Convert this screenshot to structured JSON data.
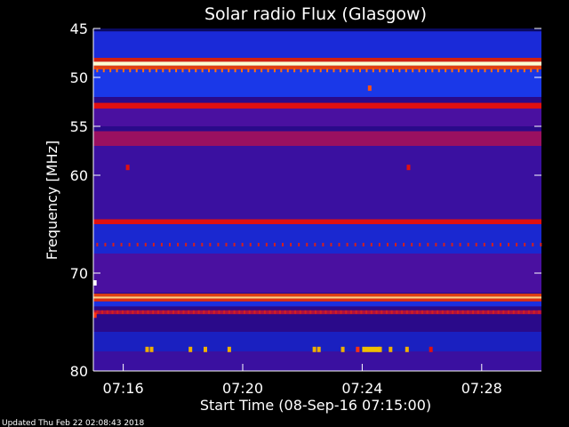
{
  "chart_data": {
    "type": "heatmap",
    "title": "Solar radio Flux (Glasgow)",
    "xlabel": "Start Time (08-Sep-16 07:15:00)",
    "ylabel": "Frequency [MHz]",
    "ylim": [
      45,
      80
    ],
    "y_axis_inverted": true,
    "y_ticks": [
      45,
      50,
      55,
      60,
      70,
      80
    ],
    "x_range_minutes_after_start": [
      0,
      15
    ],
    "x_ticks": [
      {
        "minute": 1,
        "label": "07:16"
      },
      {
        "minute": 5,
        "label": "07:20"
      },
      {
        "minute": 9,
        "label": "07:24"
      },
      {
        "minute": 13,
        "label": "07:28"
      }
    ],
    "background_color": "#2a0a8a",
    "bands": [
      {
        "from_mhz": 45.0,
        "to_mhz": 45.3,
        "intensity": "low",
        "color": "#0a0a60"
      },
      {
        "from_mhz": 45.3,
        "to_mhz": 48.0,
        "intensity": "low",
        "color": "#1a2ad8"
      },
      {
        "from_mhz": 48.0,
        "to_mhz": 48.4,
        "intensity": "medium",
        "color": "#d02010"
      },
      {
        "from_mhz": 48.4,
        "to_mhz": 48.8,
        "intensity": "high",
        "color": "#ffffd0"
      },
      {
        "from_mhz": 48.8,
        "to_mhz": 49.2,
        "intensity": "medium",
        "color": "#e04010"
      },
      {
        "from_mhz": 49.2,
        "to_mhz": 52.0,
        "intensity": "low",
        "color": "#1a38e8"
      },
      {
        "from_mhz": 52.6,
        "to_mhz": 53.2,
        "intensity": "medium",
        "color": "#e01010"
      },
      {
        "from_mhz": 53.2,
        "to_mhz": 55.0,
        "intensity": "low",
        "color": "#4a10a0"
      },
      {
        "from_mhz": 55.5,
        "to_mhz": 57.0,
        "intensity": "medium",
        "color": "#9a1060"
      },
      {
        "from_mhz": 57.0,
        "to_mhz": 64.5,
        "intensity": "low",
        "color": "#3a10a0"
      },
      {
        "from_mhz": 64.5,
        "to_mhz": 65.0,
        "intensity": "medium",
        "color": "#e01010"
      },
      {
        "from_mhz": 65.0,
        "to_mhz": 68.0,
        "intensity": "low",
        "color": "#1a28d0"
      },
      {
        "from_mhz": 68.0,
        "to_mhz": 72.0,
        "intensity": "low",
        "color": "#4a10a0"
      },
      {
        "from_mhz": 72.1,
        "to_mhz": 72.4,
        "intensity": "medium",
        "color": "#e04010"
      },
      {
        "from_mhz": 72.4,
        "to_mhz": 72.6,
        "intensity": "high",
        "color": "#ffd080"
      },
      {
        "from_mhz": 72.6,
        "to_mhz": 72.9,
        "intensity": "medium",
        "color": "#e03010"
      },
      {
        "from_mhz": 72.9,
        "to_mhz": 73.4,
        "intensity": "low",
        "color": "#1a30e0"
      },
      {
        "from_mhz": 73.8,
        "to_mhz": 74.2,
        "intensity": "medium",
        "color": "#b01040"
      },
      {
        "from_mhz": 76.0,
        "to_mhz": 78.0,
        "intensity": "low",
        "color": "#1a20c0"
      },
      {
        "from_mhz": 78.0,
        "to_mhz": 80.0,
        "intensity": "low",
        "color": "#3a10a0"
      }
    ],
    "bursts": [
      {
        "minute": 1.15,
        "mhz": 59.2,
        "color": "#e01010"
      },
      {
        "minute": 10.55,
        "mhz": 59.2,
        "color": "#e01010"
      },
      {
        "minute": 9.25,
        "mhz": 51.1,
        "color": "#ff5010"
      },
      {
        "minute": 1.8,
        "mhz": 77.8,
        "color": "#f0b000"
      },
      {
        "minute": 1.95,
        "mhz": 77.8,
        "color": "#f0b000"
      },
      {
        "minute": 3.25,
        "mhz": 77.8,
        "color": "#f0b000"
      },
      {
        "minute": 3.75,
        "mhz": 77.8,
        "color": "#f0b000"
      },
      {
        "minute": 4.55,
        "mhz": 77.8,
        "color": "#f0b000"
      },
      {
        "minute": 7.4,
        "mhz": 77.8,
        "color": "#f0b000"
      },
      {
        "minute": 7.55,
        "mhz": 77.8,
        "color": "#f0b000"
      },
      {
        "minute": 8.35,
        "mhz": 77.8,
        "color": "#f0b000"
      },
      {
        "minute": 8.85,
        "mhz": 77.8,
        "color": "#ff3010"
      },
      {
        "minute": 9.6,
        "mhz": 77.8,
        "color": "#f0b000"
      },
      {
        "minute": 9.95,
        "mhz": 77.8,
        "color": "#f0b000"
      },
      {
        "minute": 10.5,
        "mhz": 77.8,
        "color": "#f0b000"
      },
      {
        "minute": 11.3,
        "mhz": 77.8,
        "color": "#e01010"
      },
      {
        "minute": 0.05,
        "mhz": 71.0,
        "color": "#ffffff"
      },
      {
        "minute": 0.05,
        "mhz": 74.3,
        "color": "#ff3010"
      }
    ],
    "wide_bursts": [
      {
        "from_minute": 9.0,
        "to_minute": 9.6,
        "mhz": 77.8,
        "color": "#f0c000"
      }
    ],
    "dotted_rows": [
      {
        "mhz": 49.2,
        "color": "#ff7010",
        "step_minutes": 0.22
      },
      {
        "mhz": 73.9,
        "color": "#d02020",
        "step_minutes": 0.17
      },
      {
        "mhz": 67.0,
        "color": "#d02020",
        "step_minutes": 0.27
      }
    ]
  },
  "footer": {
    "updated_text": "Updated Thu Feb 22 02:08:43 2018"
  }
}
